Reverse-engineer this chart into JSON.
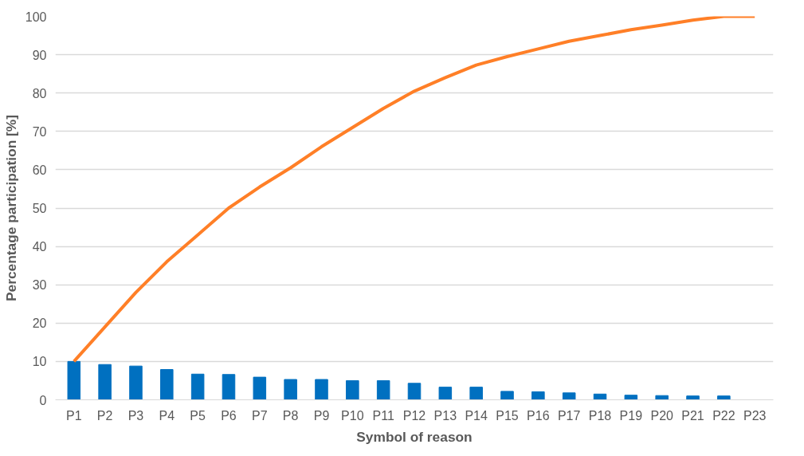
{
  "chart_data": {
    "type": "bar",
    "xlabel": "Symbol of reason",
    "ylabel": "Percentage participation [%]",
    "categories": [
      "P1",
      "P2",
      "P3",
      "P4",
      "P5",
      "P6",
      "P7",
      "P8",
      "P9",
      "P10",
      "P11",
      "P12",
      "P13",
      "P14",
      "P15",
      "P16",
      "P17",
      "P18",
      "P19",
      "P20",
      "P21",
      "P22",
      "P23"
    ],
    "series": [
      {
        "color": "#0070c0",
        "values": [
          10.0,
          9.2,
          8.8,
          7.9,
          6.7,
          6.6,
          5.9,
          5.3,
          5.3,
          5.0,
          5.0,
          4.3,
          3.3,
          3.3,
          2.2,
          2.1,
          1.8,
          1.5,
          1.2,
          1.1,
          1.0,
          1.0,
          null
        ]
      },
      {
        "type": "line",
        "color": "#ff7f27",
        "values": [
          10,
          19,
          28,
          36,
          43,
          50,
          55.5,
          60.5,
          66,
          71,
          76,
          80.5,
          84,
          87.3,
          89.5,
          91.5,
          93.5,
          95,
          96.5,
          97.7,
          99,
          100,
          100
        ]
      }
    ],
    "ylim": [
      0,
      100
    ],
    "yticks": [
      0,
      10,
      20,
      30,
      40,
      50,
      60,
      70,
      80,
      90,
      100
    ],
    "grid": "y"
  }
}
